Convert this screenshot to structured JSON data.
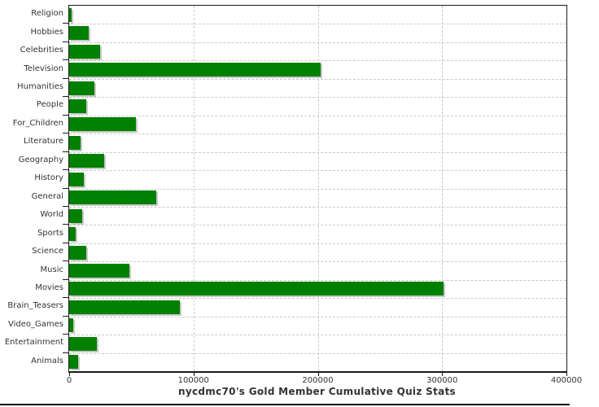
{
  "chart_data": {
    "type": "bar",
    "orientation": "horizontal",
    "title": "nycdmc70's Gold Member Cumulative Quiz Stats",
    "categories": [
      "Religion",
      "Hobbies",
      "Celebrities",
      "Television",
      "Humanities",
      "People",
      "For_Children",
      "Literature",
      "Geography",
      "History",
      "General",
      "World",
      "Sports",
      "Science",
      "Music",
      "Movies",
      "Brain_Teasers",
      "Video_Games",
      "Entertainment",
      "Animals"
    ],
    "values": [
      2000,
      16000,
      25000,
      202000,
      20500,
      13500,
      54000,
      9000,
      28000,
      11500,
      70000,
      10500,
      5500,
      13500,
      48500,
      301000,
      89000,
      3000,
      22000,
      7000
    ],
    "xlabel": "",
    "ylabel": "",
    "xlim": [
      0,
      400000
    ],
    "x_ticks": [
      0,
      100000,
      200000,
      300000,
      400000
    ],
    "x_tick_labels": [
      "0",
      "100000",
      "200000",
      "300000",
      "400000"
    ],
    "grid": "dashed",
    "gridline_values": [
      100000,
      200000,
      300000
    ],
    "bar_color": "#008000",
    "bar_shadow_color": "#c8c8c8",
    "axis_color": "#1a1a1a",
    "grid_color": "#c9c9c9",
    "text_color": "#333333",
    "background_color": "#ffffff",
    "legend": "none"
  }
}
